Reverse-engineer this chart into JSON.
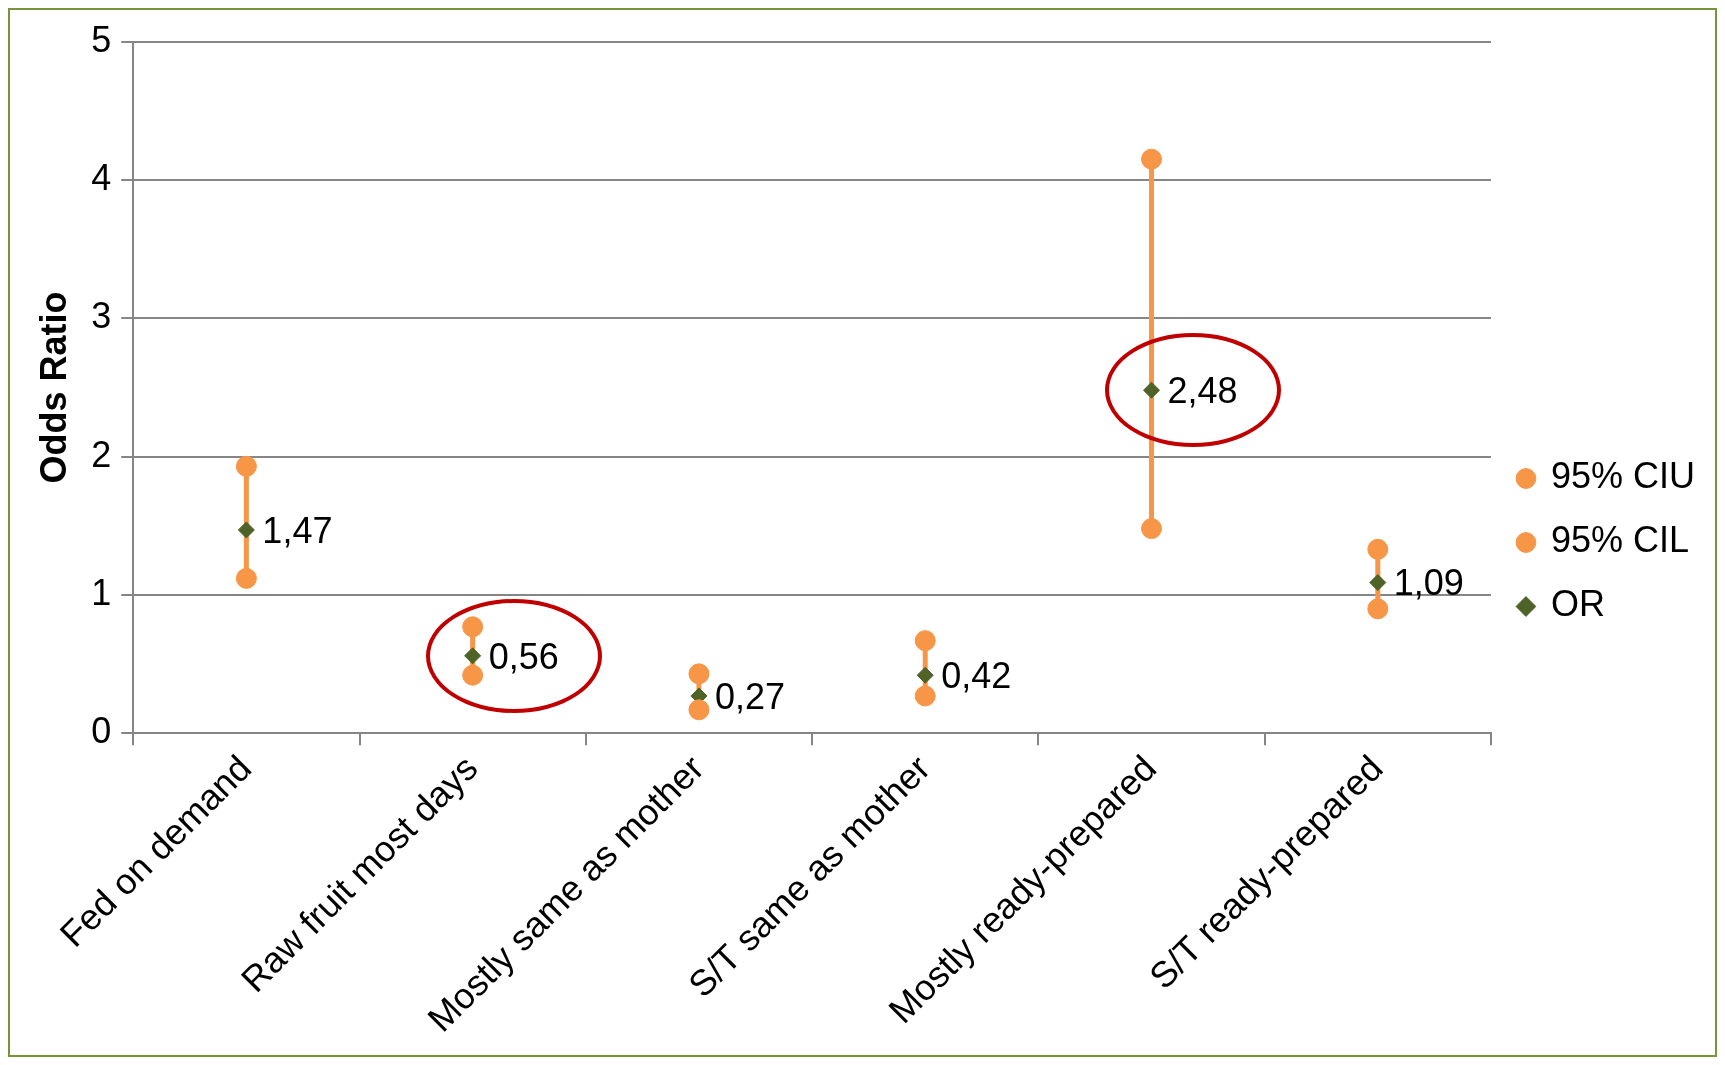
{
  "chart_data": {
    "type": "scatter",
    "ylabel": "Odds Ratio",
    "categories": [
      "Fed on demand",
      "Raw fruit most days",
      "Mostly same as mother",
      "S/T same as mother",
      "Mostly ready-prepared",
      "S/T ready-prepared"
    ],
    "ylim": [
      0,
      5
    ],
    "yticks": [
      0,
      1,
      2,
      3,
      4,
      5
    ],
    "grid": "y",
    "legend": "right",
    "series": [
      {
        "name": "95% CIU",
        "color": "#f79646",
        "marker": "circle",
        "values": [
          1.93,
          0.77,
          0.43,
          0.67,
          4.15,
          1.33
        ]
      },
      {
        "name": "95% CIL",
        "color": "#f79646",
        "marker": "circle",
        "values": [
          1.12,
          0.42,
          0.17,
          0.27,
          1.48,
          0.9
        ]
      },
      {
        "name": "OR",
        "color": "#4f6228",
        "marker": "diamond",
        "values": [
          1.47,
          0.56,
          0.27,
          0.42,
          2.48,
          1.09
        ],
        "value_labels": [
          "1,47",
          "0,56",
          "0,27",
          "0,42",
          "2,48",
          "1,09"
        ]
      }
    ]
  }
}
